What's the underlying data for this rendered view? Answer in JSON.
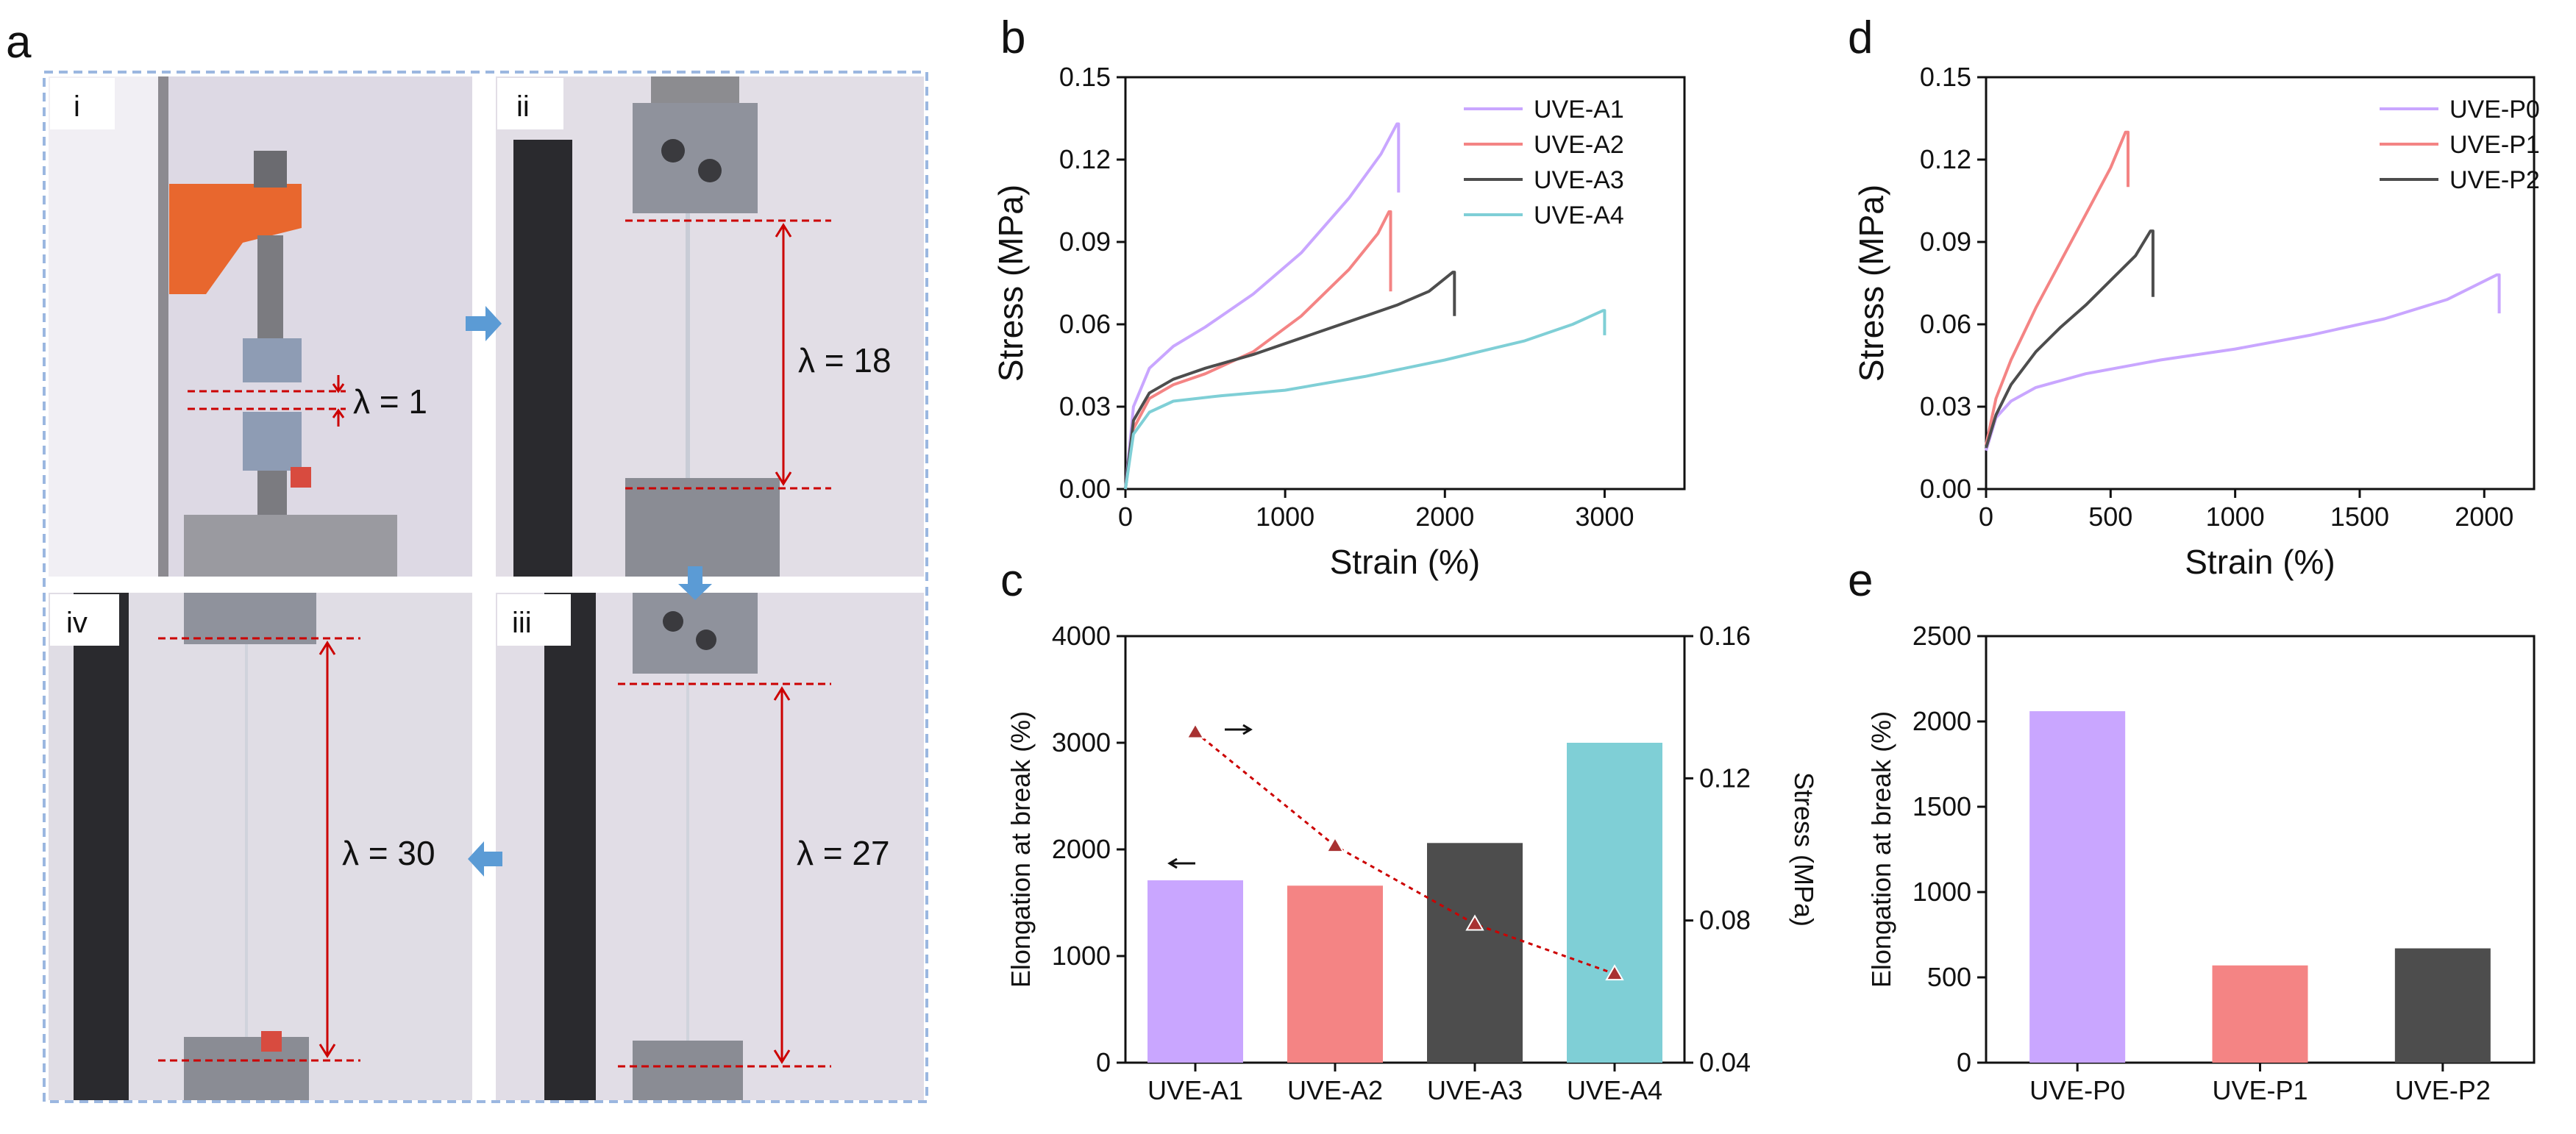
{
  "panels": {
    "a": "a",
    "b": "b",
    "c": "c",
    "d": "d",
    "e": "e"
  },
  "photos": [
    {
      "tag": "i",
      "lambda_label": "λ = 1"
    },
    {
      "tag": "ii",
      "lambda_label": "λ = 18"
    },
    {
      "tag": "iii",
      "lambda_label": "λ = 27"
    },
    {
      "tag": "iv",
      "lambda_label": "λ = 30"
    }
  ],
  "colors": {
    "A1": "#c9a6ff",
    "A2": "#f48484",
    "A3": "#4d4d4d",
    "A4": "#7fcfd6",
    "P0": "#c9a6ff",
    "P1": "#f48484",
    "P2": "#4d4d4d",
    "guide": "#cc0000",
    "arrow": "#5b9bd5",
    "frame": "#9bb7e0"
  },
  "chart_data": [
    {
      "id": "b",
      "type": "line",
      "xlabel": "Strain (%)",
      "ylabel": "Stress (MPa)",
      "xlim": [
        0,
        3500
      ],
      "ylim": [
        0,
        0.15
      ],
      "xticks": [
        "0",
        "1000",
        "2000",
        "3000"
      ],
      "yticks": [
        "0.00",
        "0.03",
        "0.06",
        "0.09",
        "0.12",
        "0.15"
      ],
      "legend": "top-right",
      "series": [
        {
          "name": "UVE-A1",
          "color": "#c9a6ff",
          "x": [
            0,
            50,
            150,
            300,
            500,
            800,
            1100,
            1400,
            1600,
            1700,
            1710,
            1710
          ],
          "y": [
            0,
            0.03,
            0.044,
            0.052,
            0.059,
            0.071,
            0.086,
            0.106,
            0.122,
            0.133,
            0.133,
            0.108
          ]
        },
        {
          "name": "UVE-A2",
          "color": "#f48484",
          "x": [
            0,
            50,
            150,
            300,
            500,
            800,
            1100,
            1400,
            1580,
            1650,
            1660,
            1660
          ],
          "y": [
            0,
            0.022,
            0.033,
            0.038,
            0.042,
            0.05,
            0.063,
            0.08,
            0.093,
            0.101,
            0.101,
            0.072
          ]
        },
        {
          "name": "UVE-A3",
          "color": "#4d4d4d",
          "x": [
            0,
            50,
            150,
            300,
            500,
            800,
            1100,
            1400,
            1700,
            1900,
            2050,
            2060,
            2060
          ],
          "y": [
            0,
            0.025,
            0.035,
            0.04,
            0.044,
            0.049,
            0.055,
            0.061,
            0.067,
            0.072,
            0.079,
            0.079,
            0.063
          ]
        },
        {
          "name": "UVE-A4",
          "color": "#7fcfd6",
          "x": [
            0,
            50,
            150,
            300,
            600,
            1000,
            1500,
            2000,
            2500,
            2800,
            2990,
            3000,
            3000
          ],
          "y": [
            0,
            0.02,
            0.028,
            0.032,
            0.034,
            0.036,
            0.041,
            0.047,
            0.054,
            0.06,
            0.065,
            0.065,
            0.056
          ]
        }
      ]
    },
    {
      "id": "c",
      "type": "bar",
      "xlabel": "",
      "ylabel": "Elongation at break (%)",
      "ylabel_right": "Stress (MPa)",
      "categories": [
        "UVE-A1",
        "UVE-A2",
        "UVE-A3",
        "UVE-A4"
      ],
      "values": [
        1710,
        1660,
        2060,
        3000
      ],
      "ylim": [
        0,
        4000
      ],
      "yticks": [
        "0",
        "1000",
        "2000",
        "3000",
        "4000"
      ],
      "ylim_right": [
        0.04,
        0.16
      ],
      "yticks_right": [
        "0.04",
        "0.08",
        "0.12",
        "0.16"
      ],
      "stress_series": {
        "values": [
          0.133,
          0.101,
          0.079,
          0.065
        ],
        "color": "#cc0000"
      }
    },
    {
      "id": "d",
      "type": "line",
      "xlabel": "Strain (%)",
      "ylabel": "Stress (MPa)",
      "xlim": [
        0,
        2200
      ],
      "ylim": [
        0,
        0.15
      ],
      "xticks": [
        "0",
        "500",
        "1000",
        "1500",
        "2000"
      ],
      "yticks": [
        "0.00",
        "0.03",
        "0.06",
        "0.09",
        "0.12",
        "0.15"
      ],
      "legend": "top-right",
      "series": [
        {
          "name": "UVE-P0",
          "color": "#c9a6ff",
          "x": [
            0,
            40,
            100,
            200,
            400,
            700,
            1000,
            1300,
            1600,
            1850,
            2050,
            2060,
            2060
          ],
          "y": [
            0.014,
            0.026,
            0.032,
            0.037,
            0.042,
            0.047,
            0.051,
            0.056,
            0.062,
            0.069,
            0.078,
            0.078,
            0.064
          ]
        },
        {
          "name": "UVE-P1",
          "color": "#f48484",
          "x": [
            0,
            40,
            100,
            200,
            300,
            400,
            500,
            560,
            570,
            570
          ],
          "y": [
            0.016,
            0.033,
            0.047,
            0.066,
            0.083,
            0.1,
            0.117,
            0.13,
            0.13,
            0.11
          ]
        },
        {
          "name": "UVE-P2",
          "color": "#4d4d4d",
          "x": [
            0,
            40,
            100,
            200,
            300,
            400,
            500,
            600,
            660,
            670,
            670
          ],
          "y": [
            0.015,
            0.027,
            0.038,
            0.05,
            0.059,
            0.067,
            0.076,
            0.085,
            0.094,
            0.094,
            0.07
          ]
        }
      ]
    },
    {
      "id": "e",
      "type": "bar",
      "xlabel": "",
      "ylabel": "Elongation at break (%)",
      "categories": [
        "UVE-P0",
        "UVE-P1",
        "UVE-P2"
      ],
      "values": [
        2060,
        570,
        670
      ],
      "ylim": [
        0,
        2500
      ],
      "yticks": [
        "0",
        "500",
        "1000",
        "1500",
        "2000",
        "2500"
      ]
    }
  ]
}
